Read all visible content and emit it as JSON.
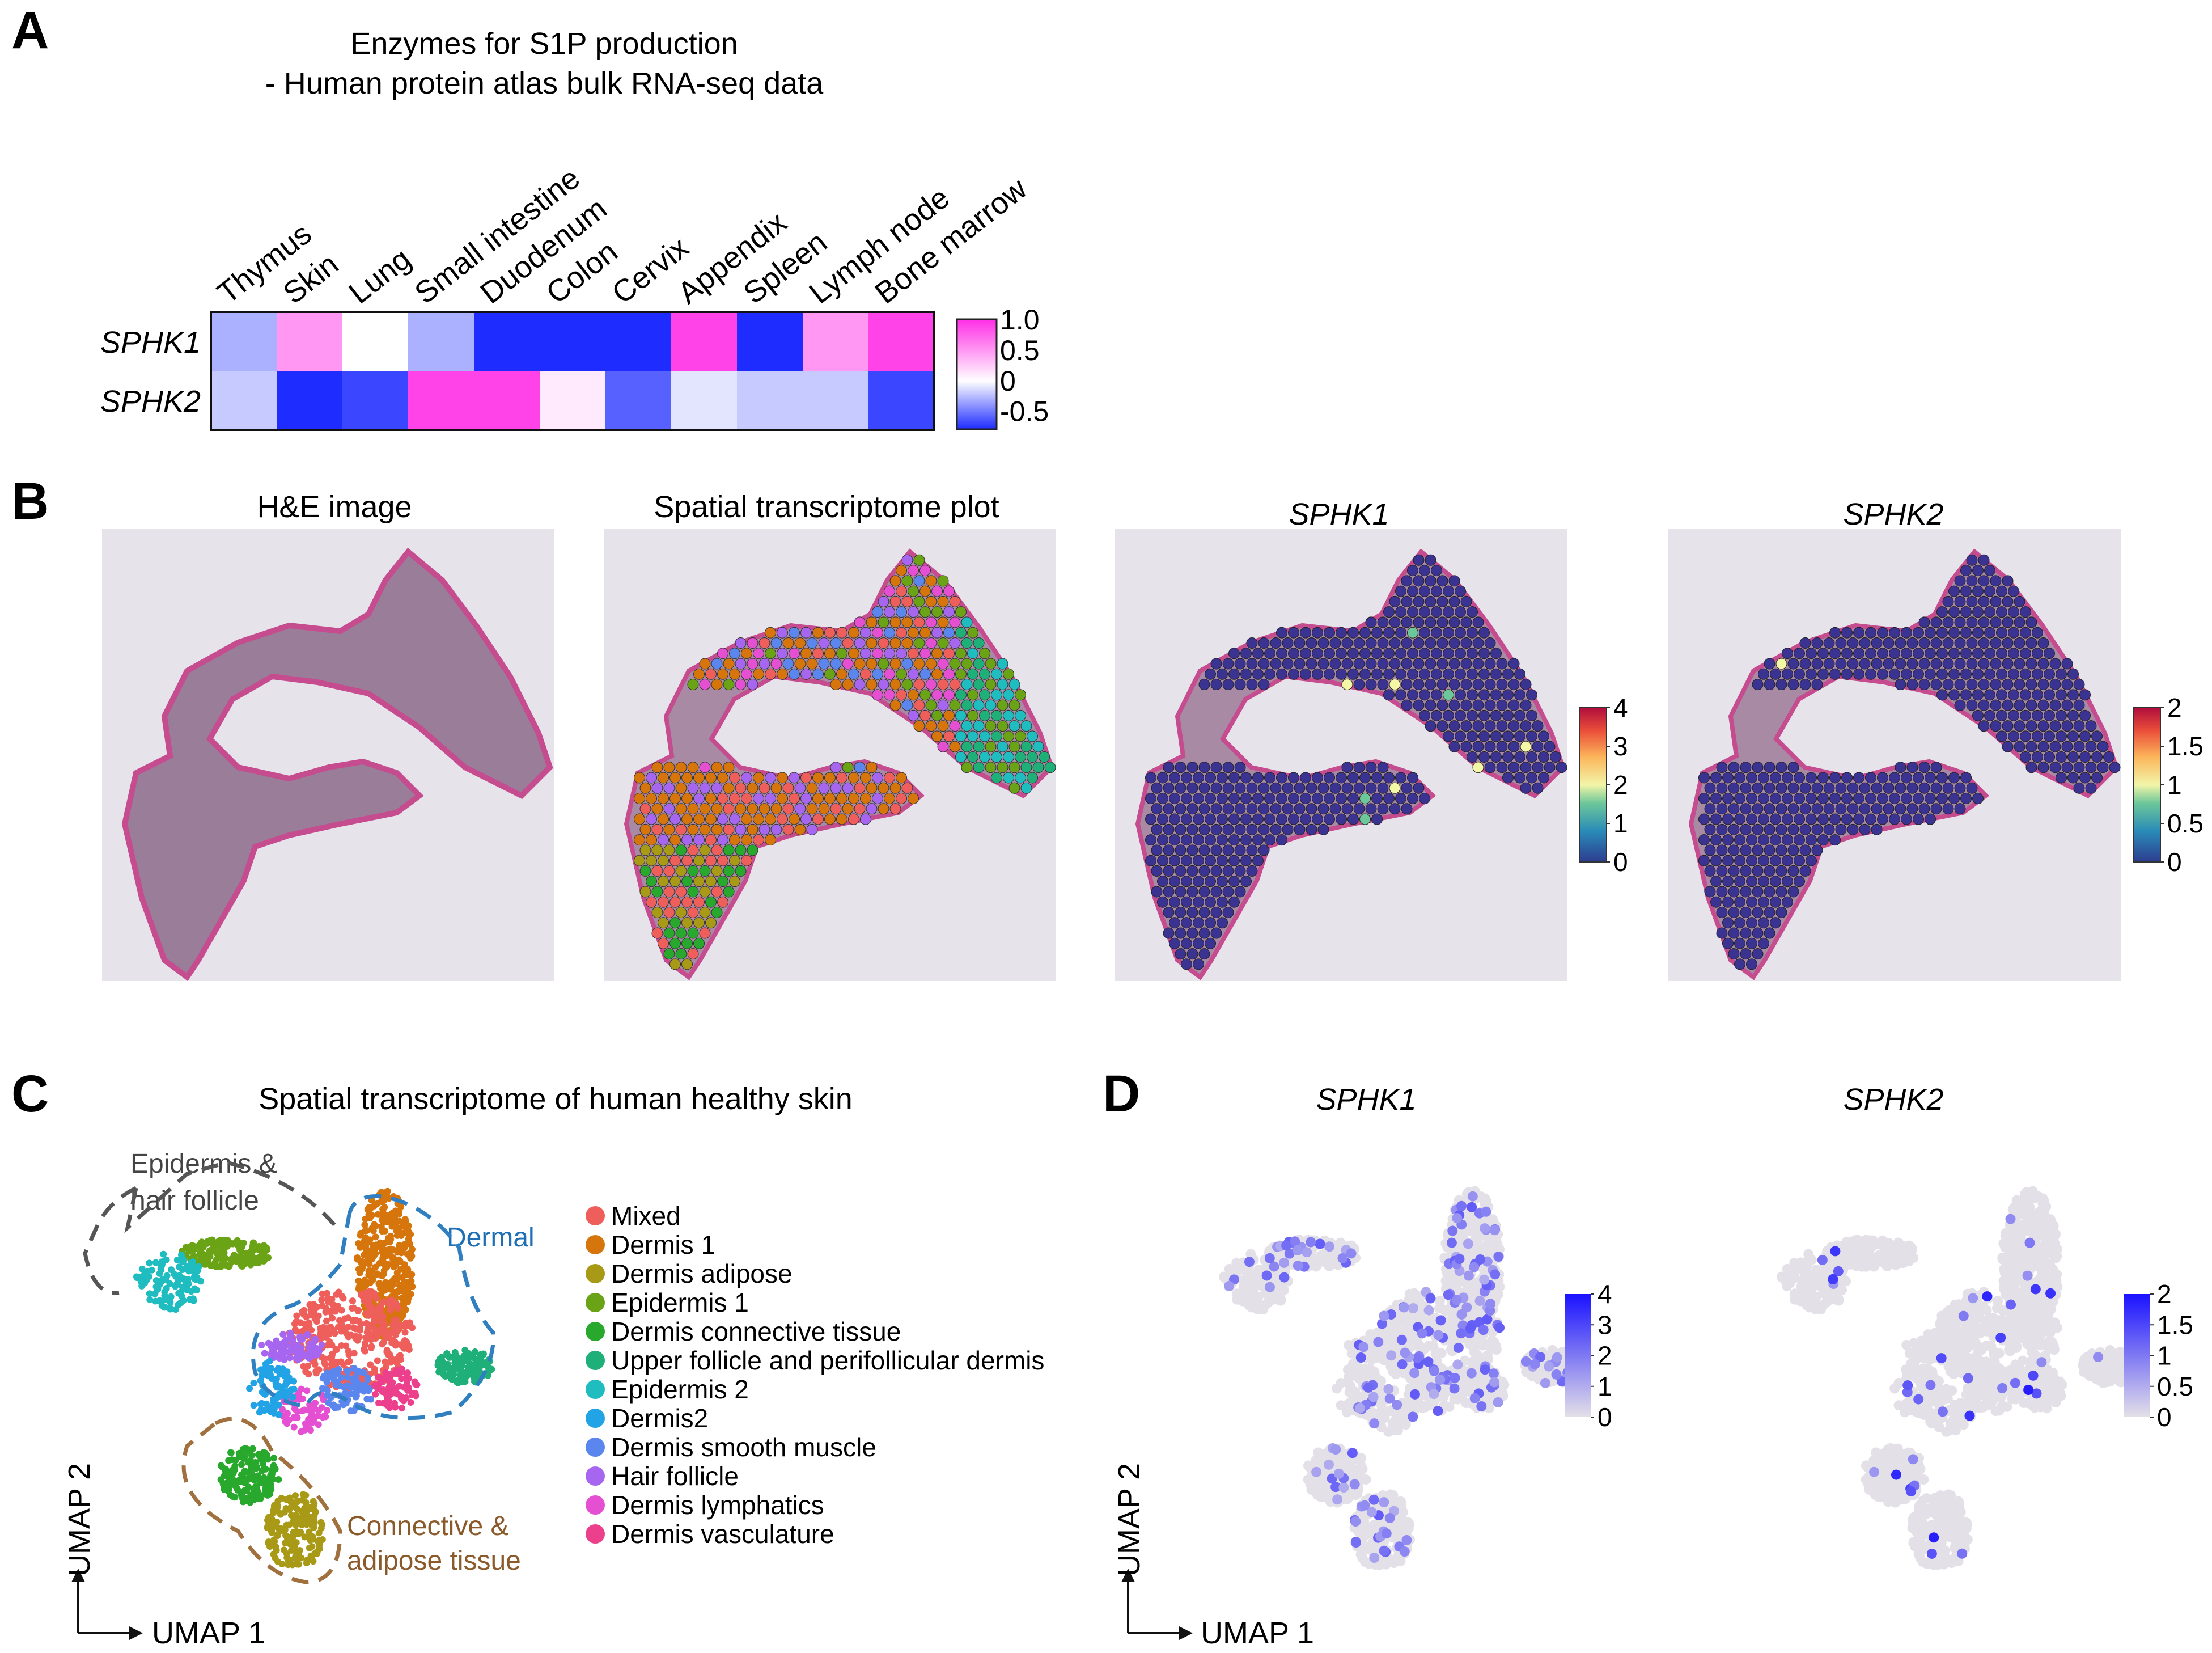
{
  "panels": {
    "A": {
      "label": "A",
      "title_line1": "Enzymes for S1P production",
      "title_line2": "- Human protein atlas bulk RNA-seq data",
      "chart_key": "heatmap"
    },
    "B": {
      "label": "B",
      "titles": [
        "H&E image",
        "Spatial transcriptome plot",
        "SPHK1",
        "SPHK2"
      ]
    },
    "C": {
      "label": "C",
      "title": "Spatial transcriptome of human healthy skin",
      "region_labels": {
        "epidermis_line1": "Epidermis &",
        "epidermis_line2": "hair follicle",
        "dermal": "Dermal",
        "connective_line1": "Connective &",
        "connective_line2": "adipose tissue"
      },
      "x_axis": "UMAP 1",
      "y_axis": "UMAP 2"
    },
    "D": {
      "label": "D",
      "titles": [
        "SPHK1",
        "SPHK2"
      ],
      "x_axis": "UMAP 1",
      "y_axis": "UMAP 2"
    }
  },
  "chart_data": [
    {
      "id": "heatmap",
      "type": "heatmap",
      "categories": [
        "Thymus",
        "Skin",
        "Lung",
        "Small intestine",
        "Duodenum",
        "Colon",
        "Cervix",
        "Appendix",
        "Spleen",
        "Lymph node",
        "Bone marrow"
      ],
      "rows": [
        "SPHK1",
        "SPHK2"
      ],
      "values": [
        [
          -0.3,
          0.5,
          0.0,
          -0.3,
          -0.8,
          -0.8,
          -0.8,
          0.9,
          -0.8,
          0.5,
          0.9
        ],
        [
          -0.2,
          -0.8,
          -0.7,
          0.9,
          0.9,
          0.1,
          -0.6,
          -0.1,
          -0.2,
          -0.2,
          -0.7
        ]
      ],
      "colorbar_ticks": [
        "1.0",
        "0.5",
        "0",
        "-0.5"
      ],
      "colorbar_range": [
        -0.8,
        1.0
      ],
      "colors": {
        "low": "#1e2cff",
        "mid": "#ffffff",
        "high": "#ff2ee6"
      }
    },
    {
      "id": "sphk1_spatial_scale",
      "type": "heatmap",
      "title": "SPHK1",
      "range": [
        0,
        4
      ],
      "colorbar_ticks": [
        "4",
        "3",
        "2",
        "1",
        "0"
      ]
    },
    {
      "id": "sphk2_spatial_scale",
      "type": "heatmap",
      "title": "SPHK2",
      "range": [
        0,
        2
      ],
      "colorbar_ticks": [
        "2",
        "1.5",
        "1",
        "0.5",
        "0"
      ]
    },
    {
      "id": "umap_clusters",
      "type": "scatter",
      "legend": [
        {
          "name": "Mixed",
          "color": "#ee5f5b"
        },
        {
          "name": "Dermis 1",
          "color": "#d6750c"
        },
        {
          "name": "Dermis adipose",
          "color": "#a89a16"
        },
        {
          "name": "Epidermis 1",
          "color": "#6aa315"
        },
        {
          "name": "Dermis connective tissue",
          "color": "#28a82c"
        },
        {
          "name": "Upper follicle and perifollicular dermis",
          "color": "#1fb07a"
        },
        {
          "name": "Epidermis 2",
          "color": "#1fbcc0"
        },
        {
          "name": "Dermis2",
          "color": "#22a3e6"
        },
        {
          "name": "Dermis smooth muscle",
          "color": "#5a86ee"
        },
        {
          "name": "Hair follicle",
          "color": "#a766ef"
        },
        {
          "name": "Dermis lymphatics",
          "color": "#e54fd2"
        },
        {
          "name": "Dermis vasculature",
          "color": "#ec3f8c"
        }
      ]
    },
    {
      "id": "umap_sphk1_scale",
      "type": "scatter",
      "title": "SPHK1",
      "range": [
        0,
        4
      ],
      "colorbar_ticks": [
        "4",
        "3",
        "2",
        "1",
        "0"
      ]
    },
    {
      "id": "umap_sphk2_scale",
      "type": "scatter",
      "title": "SPHK2",
      "range": [
        0,
        2
      ],
      "colorbar_ticks": [
        "2",
        "1.5",
        "1",
        "0.5",
        "0"
      ]
    }
  ]
}
